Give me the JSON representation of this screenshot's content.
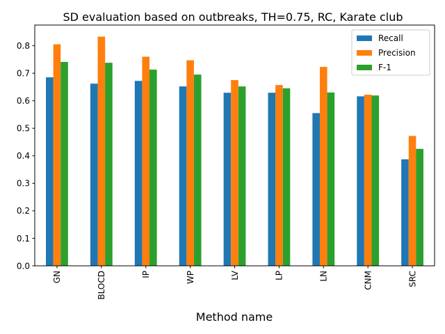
{
  "chart_data": {
    "type": "bar",
    "title": "SD evaluation based on outbreaks, TH=0.75, RC, Karate club",
    "xlabel": "Method name",
    "ylabel": "",
    "categories": [
      "GN",
      "BLOCD",
      "IP",
      "WP",
      "LV",
      "LP",
      "LN",
      "CNM",
      "SRC"
    ],
    "series": [
      {
        "name": "Recall",
        "color": "#1f77b4",
        "values": [
          0.685,
          0.662,
          0.672,
          0.652,
          0.629,
          0.629,
          0.555,
          0.616,
          0.387
        ]
      },
      {
        "name": "Precision",
        "color": "#ff7f0e",
        "values": [
          0.805,
          0.833,
          0.76,
          0.747,
          0.675,
          0.657,
          0.723,
          0.622,
          0.472
        ]
      },
      {
        "name": "F-1",
        "color": "#2ca02c",
        "values": [
          0.741,
          0.738,
          0.713,
          0.695,
          0.652,
          0.645,
          0.63,
          0.619,
          0.425
        ]
      }
    ],
    "ylim": [
      0,
      0.875
    ],
    "yticks": [
      "0.0",
      "0.1",
      "0.2",
      "0.3",
      "0.4",
      "0.5",
      "0.6",
      "0.7",
      "0.8"
    ],
    "legend_position": "top-right",
    "grid": false
  }
}
